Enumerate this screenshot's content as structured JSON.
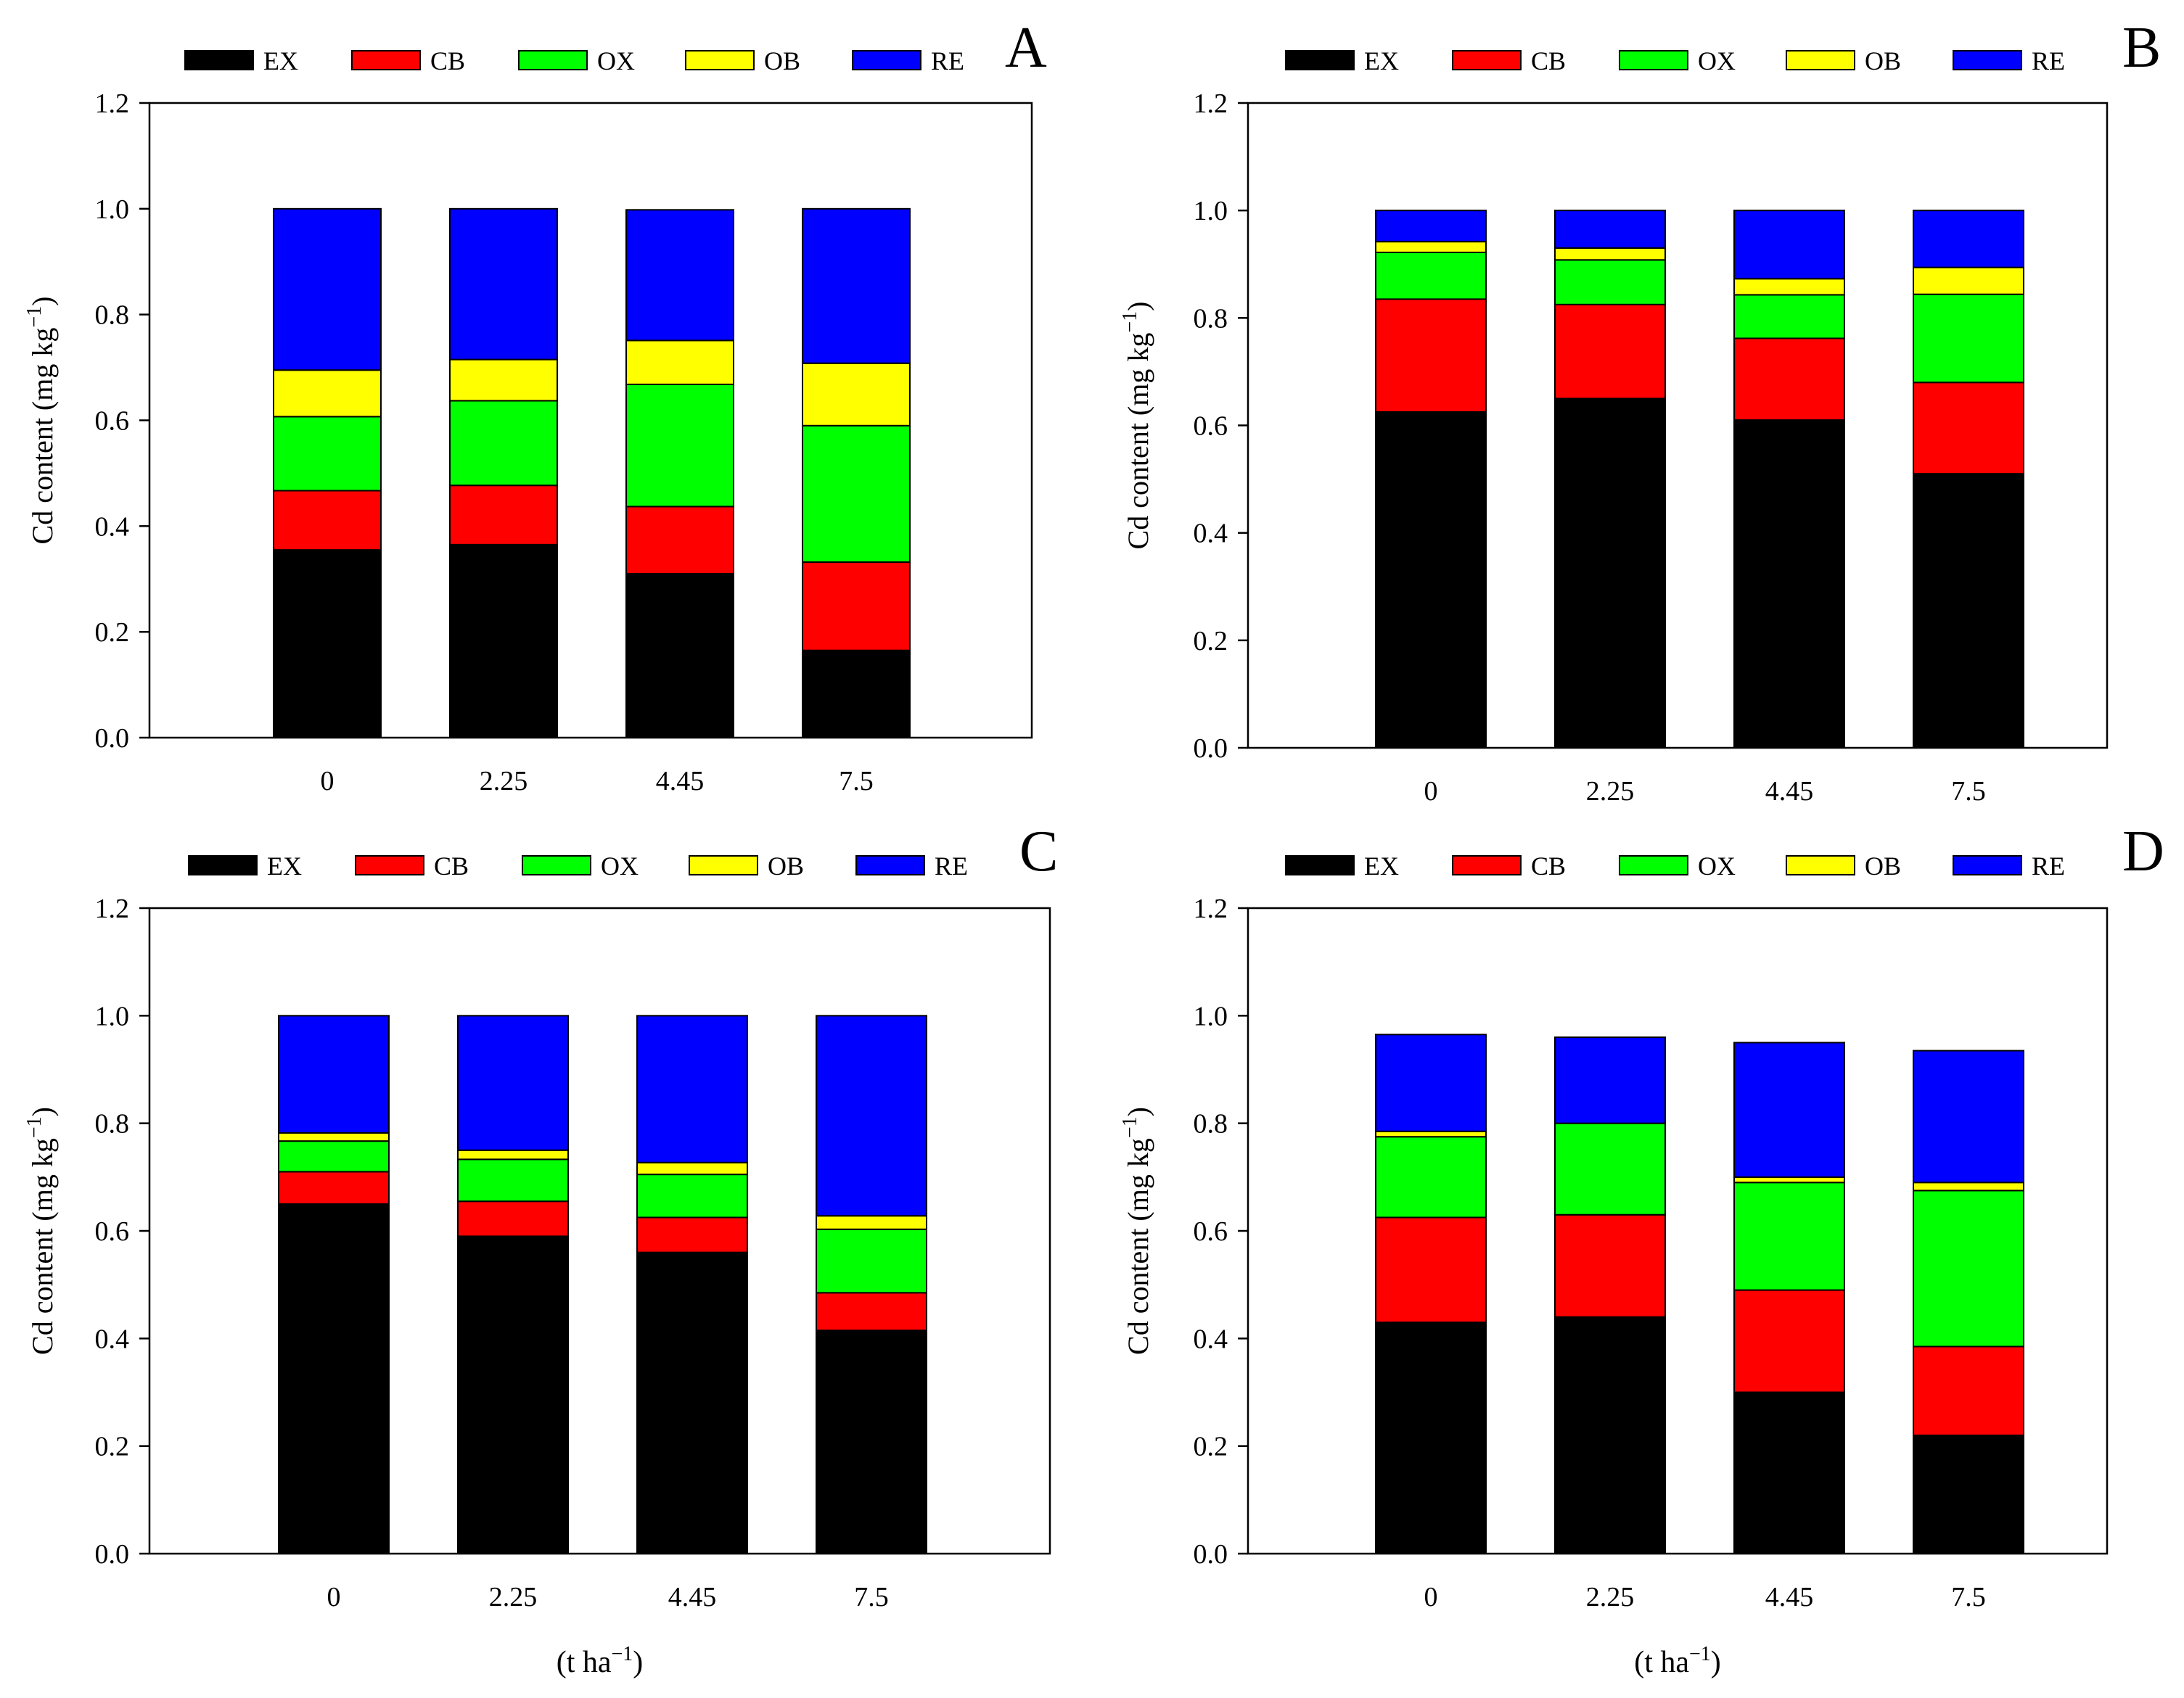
{
  "figure": {
    "legend": [
      {
        "key": "EX",
        "color": "#000000"
      },
      {
        "key": "CB",
        "color": "#ff0000"
      },
      {
        "key": "OX",
        "color": "#00ff00"
      },
      {
        "key": "OB",
        "color": "#ffff00"
      },
      {
        "key": "RE",
        "color": "#0000ff"
      }
    ],
    "ylabel_text": "Cd content (mg kg",
    "ylabel_sup": "−1",
    "ylabel_close": ")",
    "xlabel_text": "(t ha",
    "xlabel_sup": "−1",
    "xlabel_close": ")"
  },
  "chart_data": [
    {
      "panel": "A",
      "type": "stacked-bar",
      "categories": [
        "0",
        "2.25",
        "4.45",
        "7.5"
      ],
      "ylim": [
        0,
        1.2
      ],
      "yticks": [
        "0.0",
        "0.2",
        "0.4",
        "0.6",
        "0.8",
        "1.0",
        "1.2"
      ],
      "ylabel": "Cd content (mg kg−1)",
      "xlabel": "",
      "series": [
        {
          "name": "EX",
          "values": [
            0.355,
            0.365,
            0.31,
            0.165
          ]
        },
        {
          "name": "CB",
          "values": [
            0.112,
            0.112,
            0.127,
            0.167
          ]
        },
        {
          "name": "OX",
          "values": [
            0.14,
            0.16,
            0.231,
            0.258
          ]
        },
        {
          "name": "OB",
          "values": [
            0.088,
            0.078,
            0.083,
            0.118
          ]
        },
        {
          "name": "RE",
          "values": [
            0.305,
            0.285,
            0.247,
            0.292
          ]
        }
      ]
    },
    {
      "panel": "B",
      "type": "stacked-bar",
      "categories": [
        "0",
        "2.25",
        "4.45",
        "7.5"
      ],
      "ylim": [
        0,
        1.2
      ],
      "yticks": [
        "0.0",
        "0.2",
        "0.4",
        "0.6",
        "0.8",
        "1.0",
        "1.2"
      ],
      "ylabel": "Cd content (mg kg−1)",
      "xlabel": "",
      "series": [
        {
          "name": "EX",
          "values": [
            0.625,
            0.65,
            0.61,
            0.51
          ]
        },
        {
          "name": "CB",
          "values": [
            0.21,
            0.175,
            0.152,
            0.17
          ]
        },
        {
          "name": "OX",
          "values": [
            0.087,
            0.083,
            0.081,
            0.164
          ]
        },
        {
          "name": "OB",
          "values": [
            0.02,
            0.022,
            0.03,
            0.05
          ]
        },
        {
          "name": "RE",
          "values": [
            0.058,
            0.07,
            0.127,
            0.106
          ]
        }
      ]
    },
    {
      "panel": "C",
      "type": "stacked-bar",
      "categories": [
        "0",
        "2.25",
        "4.45",
        "7.5"
      ],
      "ylim": [
        0,
        1.2
      ],
      "yticks": [
        "0.0",
        "0.2",
        "0.4",
        "0.6",
        "0.8",
        "1.0",
        "1.2"
      ],
      "ylabel": "Cd content (mg kg−1)",
      "xlabel": "",
      "series": [
        {
          "name": "EX",
          "values": [
            0.65,
            0.59,
            0.56,
            0.415
          ]
        },
        {
          "name": "CB",
          "values": [
            0.06,
            0.065,
            0.065,
            0.07
          ]
        },
        {
          "name": "OX",
          "values": [
            0.057,
            0.078,
            0.08,
            0.118
          ]
        },
        {
          "name": "OB",
          "values": [
            0.015,
            0.017,
            0.022,
            0.025
          ]
        },
        {
          "name": "RE",
          "values": [
            0.218,
            0.25,
            0.273,
            0.372
          ]
        }
      ]
    },
    {
      "panel": "D",
      "type": "stacked-bar",
      "categories": [
        "0",
        "2.25",
        "4.45",
        "7.5"
      ],
      "ylim": [
        0,
        1.2
      ],
      "yticks": [
        "0.0",
        "0.2",
        "0.4",
        "0.6",
        "0.8",
        "1.0",
        "1.2"
      ],
      "ylabel": "Cd content (mg kg−1)",
      "xlabel": "(t ha−1)",
      "series": [
        {
          "name": "EX",
          "values": [
            0.43,
            0.44,
            0.3,
            0.22
          ]
        },
        {
          "name": "CB",
          "values": [
            0.195,
            0.19,
            0.19,
            0.165
          ]
        },
        {
          "name": "OX",
          "values": [
            0.15,
            0.17,
            0.2,
            0.29
          ]
        },
        {
          "name": "OB",
          "values": [
            0.01,
            0.0,
            0.01,
            0.015
          ]
        },
        {
          "name": "RE",
          "values": [
            0.18,
            0.16,
            0.25,
            0.245
          ]
        }
      ]
    }
  ]
}
